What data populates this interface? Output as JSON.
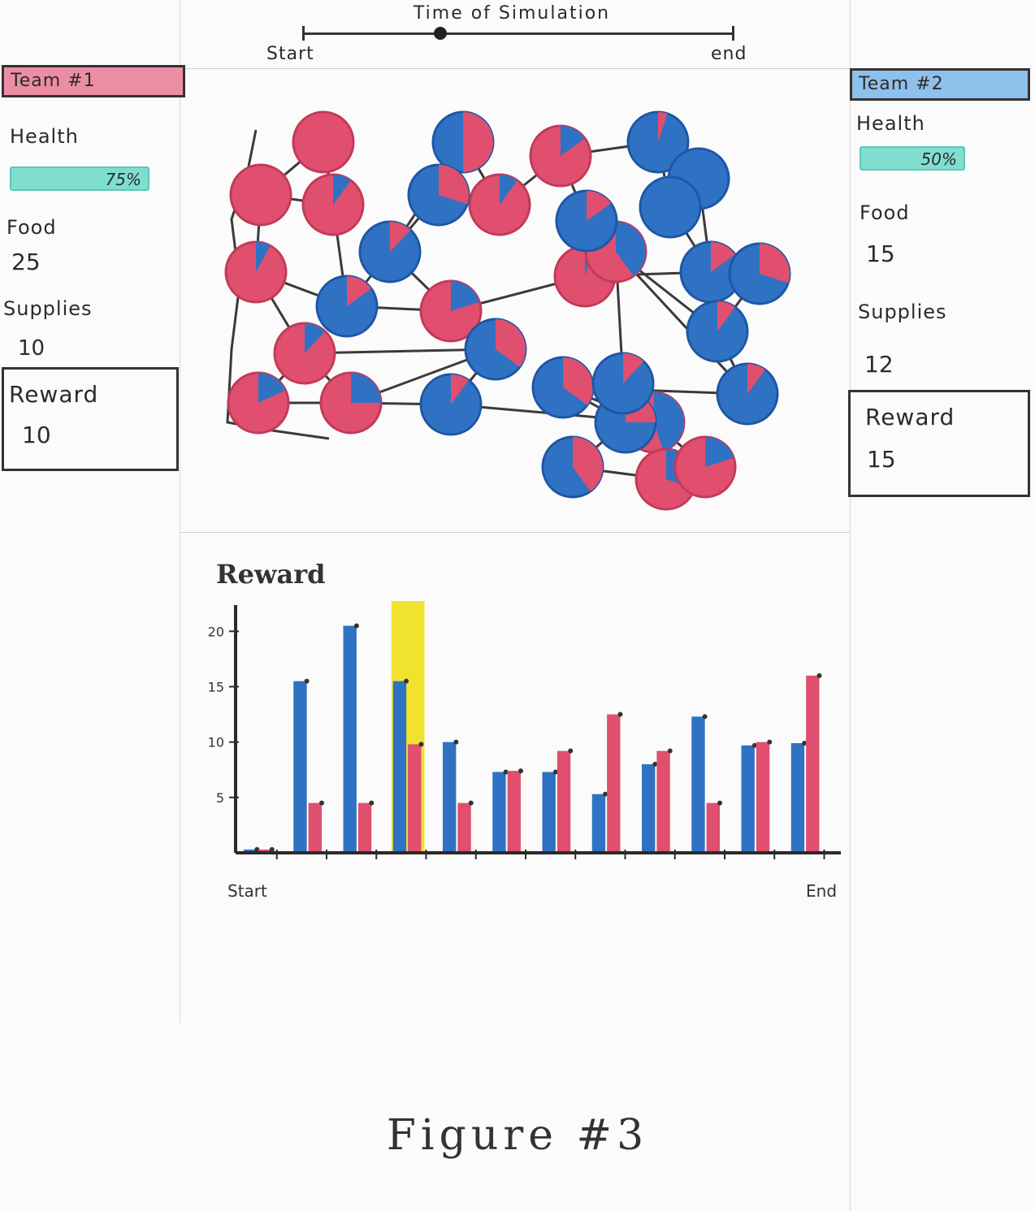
{
  "timeline": {
    "title": "Time of Simulation",
    "start_label": "Start",
    "end_label": "end",
    "position": 0.32
  },
  "team1": {
    "name": "Team #1",
    "color": "#e8657f",
    "health_label": "Health",
    "health_value": "75%",
    "food_label": "Food",
    "food_value": "25",
    "supplies_label": "Supplies",
    "supplies_value": "10",
    "reward_label": "Reward",
    "reward_value": "10"
  },
  "team2": {
    "name": "Team #2",
    "color": "#4a8fd6",
    "health_label": "Health",
    "health_value": "50%",
    "food_label": "Food",
    "food_value": "15",
    "supplies_label": "Supplies",
    "supplies_value": "12",
    "reward_label": "Reward",
    "reward_value": "15"
  },
  "colors": {
    "blue": "#2f72c4",
    "red": "#e04f6d",
    "highlight": "#f2e230",
    "health_bar": "#7fded0"
  },
  "map": {
    "agents": [
      {
        "team": "red",
        "mix": 0.0
      },
      {
        "team": "red",
        "mix": 0.0
      },
      {
        "team": "red",
        "mix": 0.1
      },
      {
        "team": "red",
        "mix": 0.08
      },
      {
        "team": "red",
        "mix": 0.12
      },
      {
        "team": "red",
        "mix": 0.18
      },
      {
        "team": "red",
        "mix": 0.25
      },
      {
        "team": "red",
        "mix": 0.2
      },
      {
        "team": "red",
        "mix": 0.1
      },
      {
        "team": "red",
        "mix": 0.15
      },
      {
        "team": "red",
        "mix": 0.05
      },
      {
        "team": "red",
        "mix": 0.4
      },
      {
        "team": "red",
        "mix": 0.45
      },
      {
        "team": "red",
        "mix": 0.3
      },
      {
        "team": "red",
        "mix": 0.2
      },
      {
        "team": "blue",
        "mix": 0.5
      },
      {
        "team": "blue",
        "mix": 0.3
      },
      {
        "team": "blue",
        "mix": 0.12
      },
      {
        "team": "blue",
        "mix": 0.15
      },
      {
        "team": "blue",
        "mix": 0.35
      },
      {
        "team": "blue",
        "mix": 0.1
      },
      {
        "team": "blue",
        "mix": 0.15
      },
      {
        "team": "blue",
        "mix": 0.35
      },
      {
        "team": "blue",
        "mix": 0.05
      },
      {
        "team": "blue",
        "mix": 0.0
      },
      {
        "team": "blue",
        "mix": 0.0
      },
      {
        "team": "blue",
        "mix": 0.15
      },
      {
        "team": "blue",
        "mix": 0.3
      },
      {
        "team": "blue",
        "mix": 0.1
      },
      {
        "team": "blue",
        "mix": 0.1
      },
      {
        "team": "blue",
        "mix": 0.25
      },
      {
        "team": "blue",
        "mix": 0.4
      },
      {
        "team": "blue",
        "mix": 0.12
      }
    ]
  },
  "chart_data": {
    "type": "bar",
    "title": "Reward",
    "x_start_label": "Start",
    "x_end_label": "End",
    "yticks": [
      5,
      10,
      15,
      20
    ],
    "ylim": [
      0,
      22
    ],
    "highlight_index": 3,
    "series": [
      {
        "color": "blue",
        "values": [
          0.3,
          15.5,
          20.5,
          15.5,
          10,
          7.3,
          7.3,
          5.3,
          8,
          12.3,
          9.7,
          9.9
        ]
      },
      {
        "color": "red",
        "values": [
          0.3,
          4.5,
          4.5,
          9.8,
          4.5,
          7.4,
          9.2,
          12.5,
          9.2,
          4.5,
          10,
          16
        ]
      }
    ]
  },
  "caption": "Figure #3"
}
